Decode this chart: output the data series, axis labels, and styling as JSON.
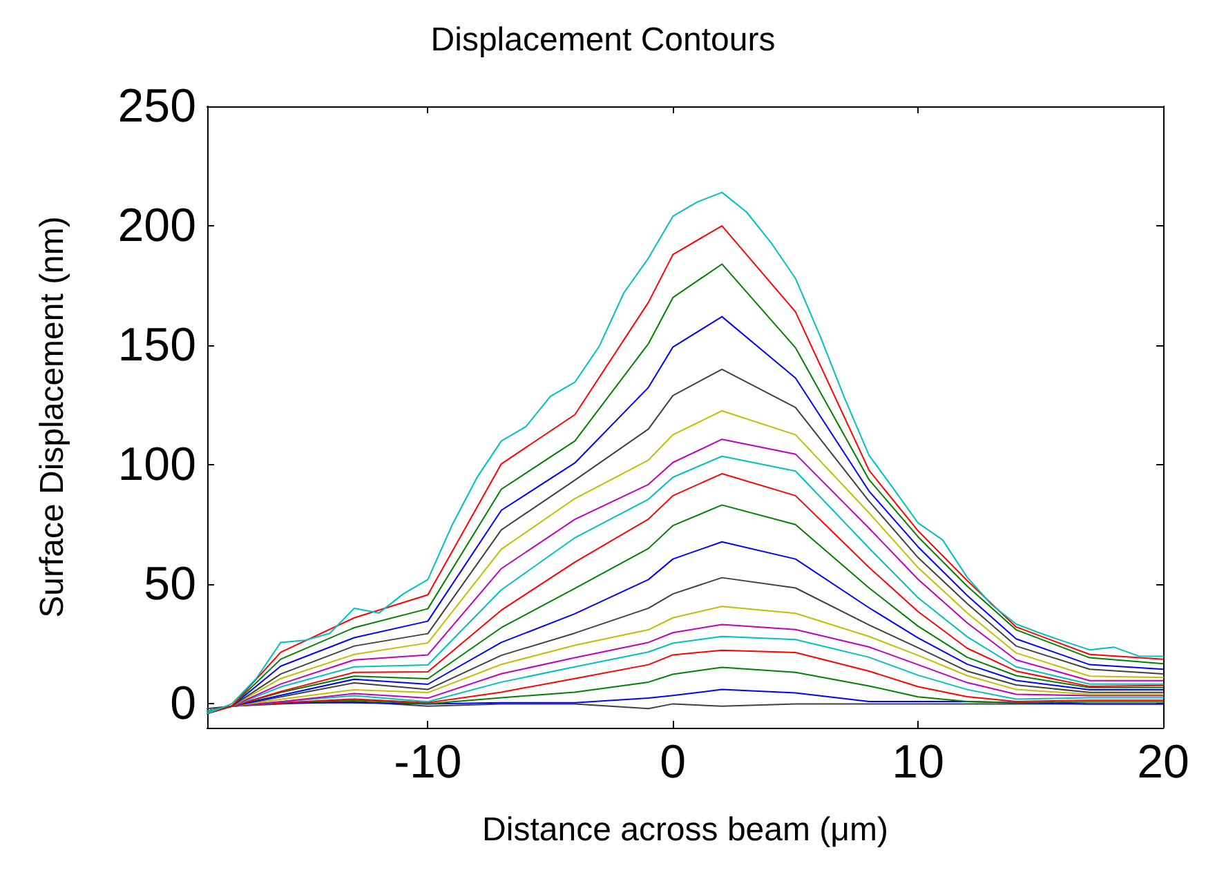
{
  "chart_data": {
    "type": "line",
    "title": "Displacement Contours",
    "xlabel": "Distance across beam (μm)",
    "ylabel": "Surface Displacement (nm)",
    "xlim": [
      -19,
      20
    ],
    "ylim": [
      -10,
      250
    ],
    "xticks": [
      -10,
      0,
      10,
      20
    ],
    "yticks": [
      0,
      50,
      100,
      150,
      200,
      250
    ],
    "grid": false,
    "marker": "none",
    "line_style": "solid",
    "x": [
      -19,
      -18,
      -16,
      -13,
      -10,
      -7,
      -4,
      -1,
      0,
      2,
      5,
      8,
      10,
      12,
      14,
      17,
      20
    ],
    "series": [
      {
        "color": "#404040",
        "values": [
          -2,
          -1,
          0,
          1,
          -1,
          0,
          0,
          -2,
          0,
          -1,
          0,
          0,
          0,
          0,
          0,
          0,
          0
        ]
      },
      {
        "color": "#0000ff",
        "values": [
          -3,
          -1,
          0.5,
          0.5,
          0,
          0.5,
          0.5,
          2.4,
          3.5,
          6,
          4.6,
          1,
          1,
          1,
          0.5,
          0,
          0
        ]
      },
      {
        "color": "#008000",
        "values": [
          -3,
          -1,
          0.5,
          1.5,
          0,
          2.6,
          4.9,
          9.1,
          12.4,
          15.3,
          13.2,
          7.5,
          2.9,
          1,
          0.5,
          0.8,
          0.8
        ]
      },
      {
        "color": "#ff0000",
        "values": [
          -3,
          -1,
          0.5,
          2,
          0.5,
          4.9,
          10.6,
          16.4,
          20.5,
          22.4,
          21.5,
          13.7,
          7.2,
          3,
          1,
          1.5,
          1.5
        ]
      },
      {
        "color": "#00bfbf",
        "values": [
          -3,
          -1,
          0.9,
          3.4,
          0.9,
          9.1,
          15.5,
          21.7,
          25.4,
          28.2,
          26.9,
          19.5,
          12,
          6,
          2,
          2.6,
          2.6
        ]
      },
      {
        "color": "#bf00bf",
        "values": [
          -3,
          -1,
          0.9,
          4.3,
          2.4,
          12.6,
          19.3,
          25.7,
          29.8,
          33.2,
          31.1,
          23.8,
          16.4,
          8.9,
          4,
          3.4,
          3.4
        ]
      },
      {
        "color": "#bfbf00",
        "values": [
          -3,
          -1,
          1.9,
          5.9,
          4.7,
          16.5,
          24.5,
          31,
          36,
          40.8,
          37.9,
          28.2,
          20.3,
          11.8,
          6,
          4,
          4
        ]
      },
      {
        "color": "#404040",
        "values": [
          -3,
          -1,
          2.9,
          8.8,
          6,
          20.3,
          29.6,
          40,
          46,
          52.8,
          48.5,
          33,
          23.5,
          13.7,
          7.9,
          4.8,
          4.8
        ]
      },
      {
        "color": "#0000ff",
        "values": [
          -3,
          -1,
          3.6,
          10.3,
          8.2,
          25.7,
          37.7,
          52,
          60.6,
          67.8,
          60.6,
          40.2,
          27.6,
          16.6,
          9.8,
          5.9,
          5.9
        ]
      },
      {
        "color": "#008000",
        "values": [
          -3,
          -1,
          4.8,
          11.6,
          10.5,
          31.9,
          48.3,
          65,
          74.6,
          83.2,
          75,
          48.5,
          32.5,
          19.5,
          11.8,
          6.8,
          6.8
        ]
      },
      {
        "color": "#ff0000",
        "values": [
          -3,
          -1,
          5.2,
          13.2,
          13.4,
          39.2,
          59.3,
          77.3,
          87.1,
          96.3,
          87.1,
          57.1,
          38.6,
          23.3,
          13.7,
          7.3,
          7.7
        ]
      },
      {
        "color": "#00bfbf",
        "values": [
          -3,
          -1,
          7.1,
          15.5,
          16.3,
          47.7,
          69.5,
          85.6,
          94.8,
          103.6,
          97.4,
          65.2,
          44.4,
          28.1,
          15.5,
          8.3,
          8.3
        ]
      },
      {
        "color": "#bf00bf",
        "values": [
          -4,
          -1,
          8.3,
          18.4,
          20.5,
          56.6,
          77.2,
          91.8,
          101,
          110.7,
          104.5,
          73.5,
          52.1,
          33.9,
          18.4,
          9.7,
          9.7
        ]
      },
      {
        "color": "#bfbf00",
        "values": [
          -4,
          -1,
          10.6,
          20.7,
          25.5,
          64.7,
          85.9,
          102,
          112.6,
          122.6,
          112.6,
          79.9,
          57,
          38.1,
          21.3,
          11.6,
          11
        ]
      },
      {
        "color": "#404040",
        "values": [
          -4,
          -1,
          12.5,
          24.2,
          29.4,
          72.8,
          93.6,
          115,
          129,
          140,
          124,
          84.8,
          61.2,
          42,
          24.2,
          14.5,
          12.5
        ]
      },
      {
        "color": "#0000ff",
        "values": [
          -4,
          -1,
          15.8,
          27.7,
          34.6,
          81,
          100.8,
          132.4,
          149.3,
          162,
          136.3,
          89,
          65.7,
          45.4,
          27.2,
          16.4,
          14.5
        ]
      },
      {
        "color": "#008000",
        "values": [
          -4,
          -1,
          18.7,
          31.9,
          39.8,
          89.8,
          110,
          150.7,
          170,
          184,
          149,
          93.8,
          69.9,
          49.3,
          31,
          19.3,
          16.8
        ]
      },
      {
        "color": "#ff0000",
        "values": [
          -4,
          -1,
          21.6,
          36,
          45.6,
          100.4,
          121,
          168,
          188,
          200,
          164,
          97.7,
          72.4,
          51.6,
          32.2,
          20.7,
          18.7
        ]
      },
      {
        "color": "#00bfbf",
        "x": [
          -19,
          -18,
          -17,
          -16,
          -15,
          -14,
          -13,
          -12,
          -11,
          -10,
          -9,
          -8,
          -7,
          -6,
          -5,
          -4,
          -3,
          -2,
          -1,
          0,
          1,
          2,
          3,
          4,
          5,
          6,
          7,
          8,
          9,
          10,
          11,
          12,
          13,
          14,
          15,
          16,
          17,
          18,
          19,
          20
        ],
        "values": [
          -4,
          0,
          10.6,
          25.7,
          26.6,
          29.5,
          40,
          38,
          46,
          52,
          75,
          94.6,
          110,
          116,
          128.6,
          134.6,
          149.7,
          172,
          186.5,
          204,
          210,
          214,
          205.8,
          193,
          178,
          154,
          128,
          104,
          90,
          75.7,
          68.6,
          53,
          41.5,
          33.4,
          29.5,
          26,
          22.6,
          23.7,
          20,
          19.9
        ]
      }
    ]
  }
}
